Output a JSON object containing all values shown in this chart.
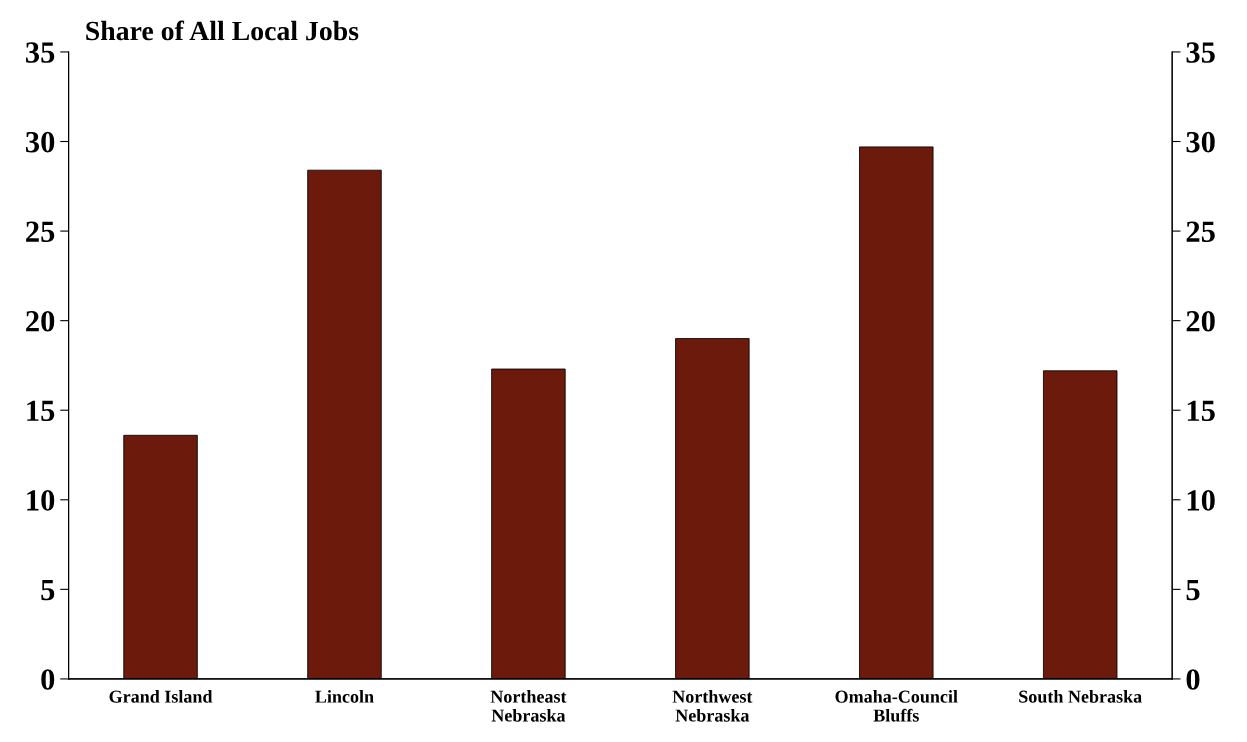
{
  "chart_data": {
    "type": "bar",
    "title": "Share of All Local Jobs",
    "categories": [
      "Grand Island",
      "Lincoln",
      "Northeast\nNebraska",
      "Northwest\nNebraska",
      "Omaha-Council\nBluffs",
      "South Nebraska"
    ],
    "values": [
      13.6,
      28.4,
      17.3,
      19.0,
      29.7,
      17.2
    ],
    "color": "#6b1a0c",
    "ylim": [
      0,
      35
    ],
    "yticks": [
      0,
      5,
      10,
      15,
      20,
      25,
      30,
      35
    ],
    "y2lim": [
      0,
      35
    ],
    "y2ticks": [
      0,
      5,
      10,
      15,
      20,
      25,
      30,
      35
    ],
    "grid": false,
    "legend": false
  }
}
